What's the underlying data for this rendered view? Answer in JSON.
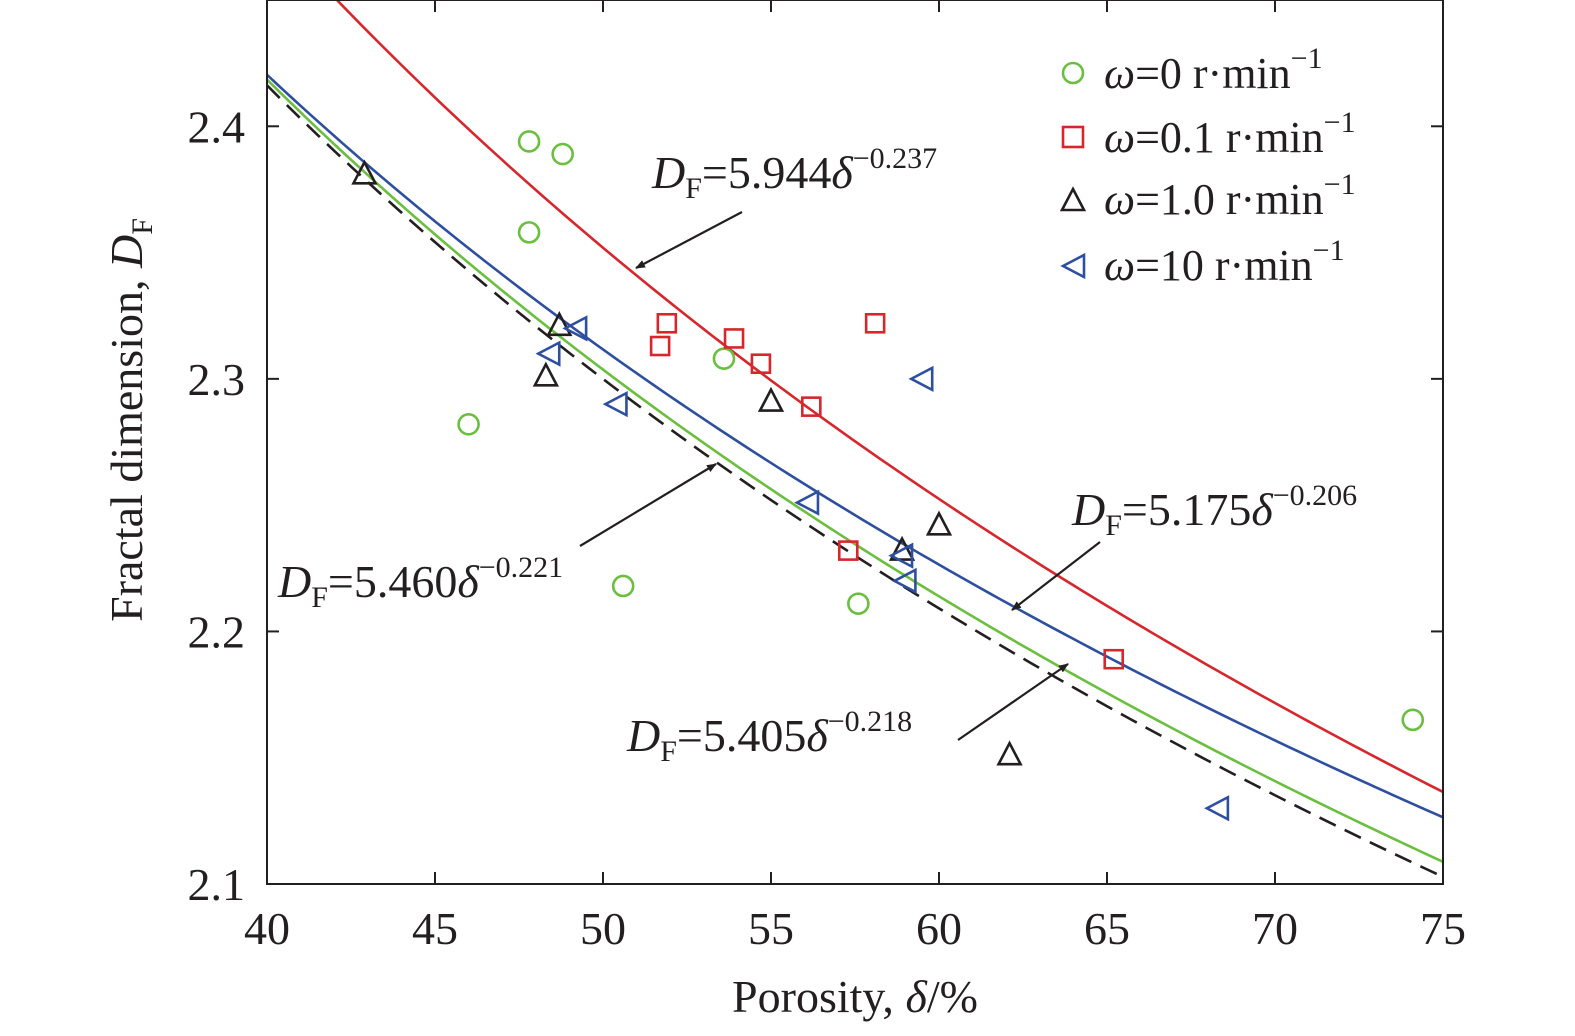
{
  "chart_data": {
    "type": "scatter",
    "xlabel": {
      "text": "Porosity, ",
      "var": "δ",
      "unit": "/%"
    },
    "ylabel": {
      "text": "Fractal dimension, ",
      "var": "D",
      "sub": "F"
    },
    "xlim": [
      40,
      75
    ],
    "ylim": [
      2.1,
      2.45
    ],
    "xticks": [
      "40",
      "45",
      "50",
      "55",
      "60",
      "65",
      "70",
      "75"
    ],
    "yticks": [
      "2.1",
      "2.2",
      "2.3",
      "2.4"
    ],
    "legend_position": "top-right",
    "series": [
      {
        "name": {
          "var": "ω",
          "rest": "=0 r·min",
          "sup": "−1"
        },
        "marker": "circle",
        "color": "#6abf3f",
        "points": [
          [
            46.0,
            2.282
          ],
          [
            47.8,
            2.394
          ],
          [
            47.8,
            2.358
          ],
          [
            48.8,
            2.389
          ],
          [
            50.6,
            2.218
          ],
          [
            53.6,
            2.308
          ],
          [
            57.6,
            2.211
          ],
          [
            74.1,
            2.165
          ]
        ],
        "fit": {
          "a": 5.405,
          "b": -0.218
        }
      },
      {
        "name": {
          "var": "ω",
          "rest": "=0.1 r·min",
          "sup": "−1"
        },
        "marker": "square",
        "color": "#d7262c",
        "points": [
          [
            51.7,
            2.313
          ],
          [
            51.9,
            2.322
          ],
          [
            53.9,
            2.316
          ],
          [
            54.7,
            2.306
          ],
          [
            56.2,
            2.289
          ],
          [
            57.3,
            2.232
          ],
          [
            58.1,
            2.322
          ],
          [
            65.2,
            2.189
          ]
        ],
        "fit": {
          "a": 5.944,
          "b": -0.237
        }
      },
      {
        "name": {
          "var": "ω",
          "rest": "=1.0 r·min",
          "sup": "−1"
        },
        "marker": "triangle-up",
        "color": "#231f20",
        "points": [
          [
            42.9,
            2.381
          ],
          [
            48.3,
            2.301
          ],
          [
            48.7,
            2.321
          ],
          [
            55.0,
            2.291
          ],
          [
            58.9,
            2.232
          ],
          [
            60.0,
            2.242
          ],
          [
            62.1,
            2.151
          ]
        ],
        "fit": {
          "a": 5.46,
          "b": -0.221
        },
        "fit_style": "dashed"
      },
      {
        "name": {
          "var": "ω",
          "rest": "=10 r·min",
          "sup": "−1"
        },
        "marker": "triangle-left",
        "color": "#2e4f9f",
        "points": [
          [
            48.4,
            2.31
          ],
          [
            49.2,
            2.32
          ],
          [
            50.4,
            2.29
          ],
          [
            56.1,
            2.251
          ],
          [
            58.9,
            2.23
          ],
          [
            59.0,
            2.22
          ],
          [
            59.5,
            2.3
          ],
          [
            68.3,
            2.13
          ]
        ],
        "fit": {
          "a": 5.175,
          "b": -0.206
        }
      }
    ],
    "annotations": [
      {
        "pre": "D",
        "sub": "F",
        "mid": "=5.944",
        "var": "δ",
        "sup": "−0.237"
      },
      {
        "pre": "D",
        "sub": "F",
        "mid": "=5.175",
        "var": "δ",
        "sup": "−0.206"
      },
      {
        "pre": "D",
        "sub": "F",
        "mid": "=5.460",
        "var": "δ",
        "sup": "−0.221"
      },
      {
        "pre": "D",
        "sub": "F",
        "mid": "=5.405",
        "var": "δ",
        "sup": "−0.218"
      }
    ]
  }
}
